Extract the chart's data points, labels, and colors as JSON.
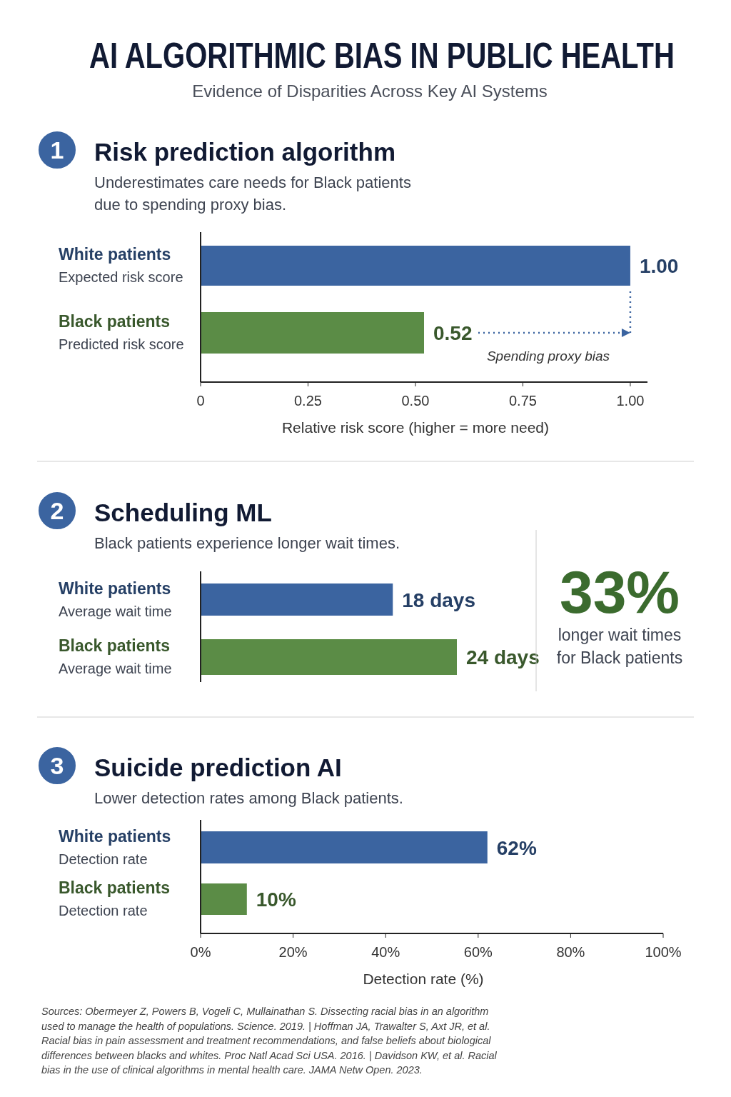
{
  "chart_data": [
    {
      "type": "other",
      "title": "AI ALGORITHMIC BIAS IN PUBLIC HEALTH",
      "subtitle": "Evidence of Disparities Across Key AI Systems"
    },
    {
      "type": "bar",
      "orientation": "horizontal",
      "title": "Risk prediction algorithm",
      "subtitle": "Underestimates care needs for Black patients due to spending proxy bias.",
      "categories": [
        "White patients\nExpected risk score",
        "Black patients\nPredicted risk score"
      ],
      "values": [
        1.0,
        0.52
      ],
      "colors": [
        "#3b64a0",
        "#5b8c46"
      ],
      "value_labels": [
        "1.00",
        "0.52"
      ],
      "xlim": [
        0,
        1.04
      ],
      "xticks": [
        {
          "value": 0,
          "label": "0"
        },
        {
          "value": 0.25,
          "label": "0.25"
        },
        {
          "value": 0.5,
          "label": "0.50"
        },
        {
          "value": 0.75,
          "label": "0.75"
        },
        {
          "value": 1.0,
          "label": "1.00"
        }
      ],
      "xlabel": "Relative risk score (higher = more need)",
      "annotations": [
        "1",
        "Spending proxy bias"
      ]
    },
    {
      "type": "bar",
      "orientation": "horizontal",
      "title": "Scheduling ML",
      "subtitle": "Black patients experience longer wait times.",
      "categories": [
        "White patients\nAverage wait time",
        "Black patients\nAverage wait time"
      ],
      "values": [
        18,
        24
      ],
      "colors": [
        "#3b64a0",
        "#5b8c46"
      ],
      "value_labels": [
        "18 days",
        "24 days"
      ],
      "annotations": [
        "2",
        "33%",
        "longer wait times for Black patients"
      ]
    },
    {
      "type": "bar",
      "orientation": "horizontal",
      "title": "Suicide prediction AI",
      "subtitle": "Lower detection rates among Black patients.",
      "categories": [
        "White patients\nDetection rate",
        "Black patients\nDetection rate"
      ],
      "values": [
        62,
        10
      ],
      "colors": [
        "#3b64a0",
        "#5b8c46"
      ],
      "value_labels": [
        "62%",
        "10%"
      ],
      "xlim": [
        0,
        100
      ],
      "xticks": [
        {
          "value": 0,
          "label": "0%"
        },
        {
          "value": 20,
          "label": "20%"
        },
        {
          "value": 40,
          "label": "40%"
        },
        {
          "value": 60,
          "label": "60%"
        },
        {
          "value": 80,
          "label": "80%"
        },
        {
          "value": 100,
          "label": "100%"
        }
      ],
      "xlabel": "Detection rate (%)",
      "annotations": [
        "3",
        "Sources: Obermeyer Z, Powers B, Vogeli C, Mullainathan S. Dissecting racial bias in an algorithm used to manage the health of populations. Science. 2019.  |  Hoffman JA, Trawalter S, Axt JR, et al. Racial bias in pain assessment and treatment recommendations, and false beliefs about biological differences between blacks and whites. Proc Natl Acad Sci USA. 2016.  |  Davidson KW, et al. Racial bias in the use of clinical algorithms in mental health care.  JAMA Netw Open. 2023."
      ]
    }
  ]
}
